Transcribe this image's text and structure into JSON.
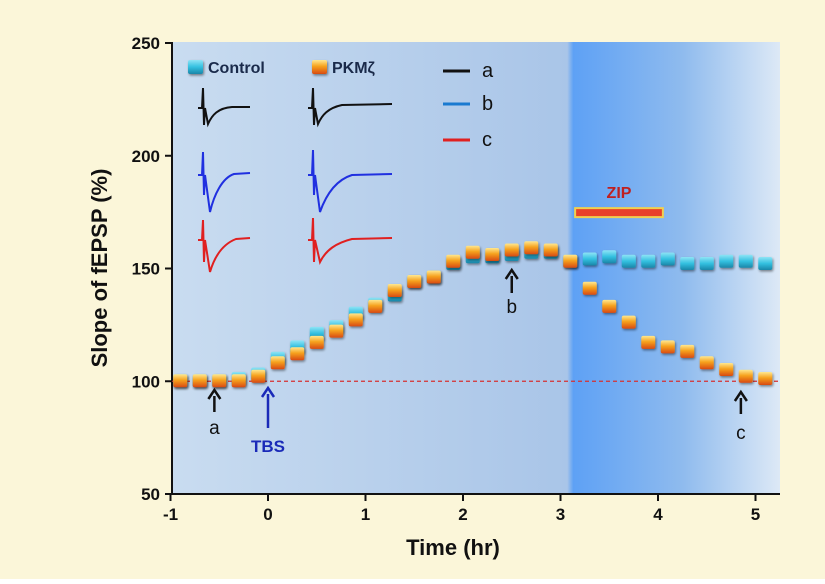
{
  "chart_data": {
    "type": "scatter",
    "title": "",
    "xlabel": "Time (hr)",
    "ylabel": "Slope of fEPSP (%)",
    "xlim": [
      -1,
      5.2
    ],
    "ylim": [
      50,
      250
    ],
    "xticks": [
      -1,
      0,
      1,
      2,
      3,
      4,
      5
    ],
    "yticks": [
      50,
      100,
      150,
      200,
      250
    ],
    "baseline": 100,
    "series": [
      {
        "name": "Control",
        "color": "#33c0e0",
        "x": [
          -0.9,
          -0.7,
          -0.5,
          -0.3,
          -0.1,
          0.1,
          0.3,
          0.5,
          0.7,
          0.9,
          1.1,
          1.3,
          1.5,
          1.7,
          1.9,
          2.1,
          2.3,
          2.5,
          2.7,
          2.9,
          3.1,
          3.3,
          3.5,
          3.7,
          3.9,
          4.1,
          4.3,
          4.5,
          4.7,
          4.9,
          5.1
        ],
        "y": [
          100,
          100,
          100,
          101,
          103,
          110,
          115,
          121,
          124,
          130,
          134,
          138,
          144,
          146,
          152,
          155,
          155,
          156,
          157,
          157,
          153,
          154,
          155,
          153,
          153,
          154,
          152,
          152,
          153,
          153,
          152
        ]
      },
      {
        "name": "PKMζ",
        "color": "#f07a1a",
        "x": [
          -0.9,
          -0.7,
          -0.5,
          -0.3,
          -0.1,
          0.1,
          0.3,
          0.5,
          0.7,
          0.9,
          1.1,
          1.3,
          1.5,
          1.7,
          1.9,
          2.1,
          2.3,
          2.5,
          2.7,
          2.9,
          3.1,
          3.3,
          3.5,
          3.7,
          3.9,
          4.1,
          4.3,
          4.5,
          4.7,
          4.9,
          5.1
        ],
        "y": [
          100,
          100,
          100,
          100,
          102,
          108,
          112,
          117,
          122,
          127,
          133,
          140,
          144,
          146,
          153,
          157,
          156,
          158,
          159,
          158,
          153,
          141,
          133,
          126,
          117,
          115,
          113,
          108,
          105,
          102,
          101
        ]
      }
    ],
    "traces_legend": [
      {
        "label": "a",
        "color": "#111111"
      },
      {
        "label": "b",
        "color": "#1a7ad0"
      },
      {
        "label": "c",
        "color": "#e02020"
      }
    ],
    "annotations": {
      "a": {
        "label": "a",
        "x": -0.55
      },
      "tbs": {
        "label": "TBS",
        "x": 0
      },
      "b": {
        "label": "b",
        "x": 2.5
      },
      "c": {
        "label": "c",
        "x": 4.85
      },
      "zip": {
        "label": "ZIP",
        "x_start": 3.15,
        "x_end": 4.05,
        "y": 175
      }
    }
  }
}
